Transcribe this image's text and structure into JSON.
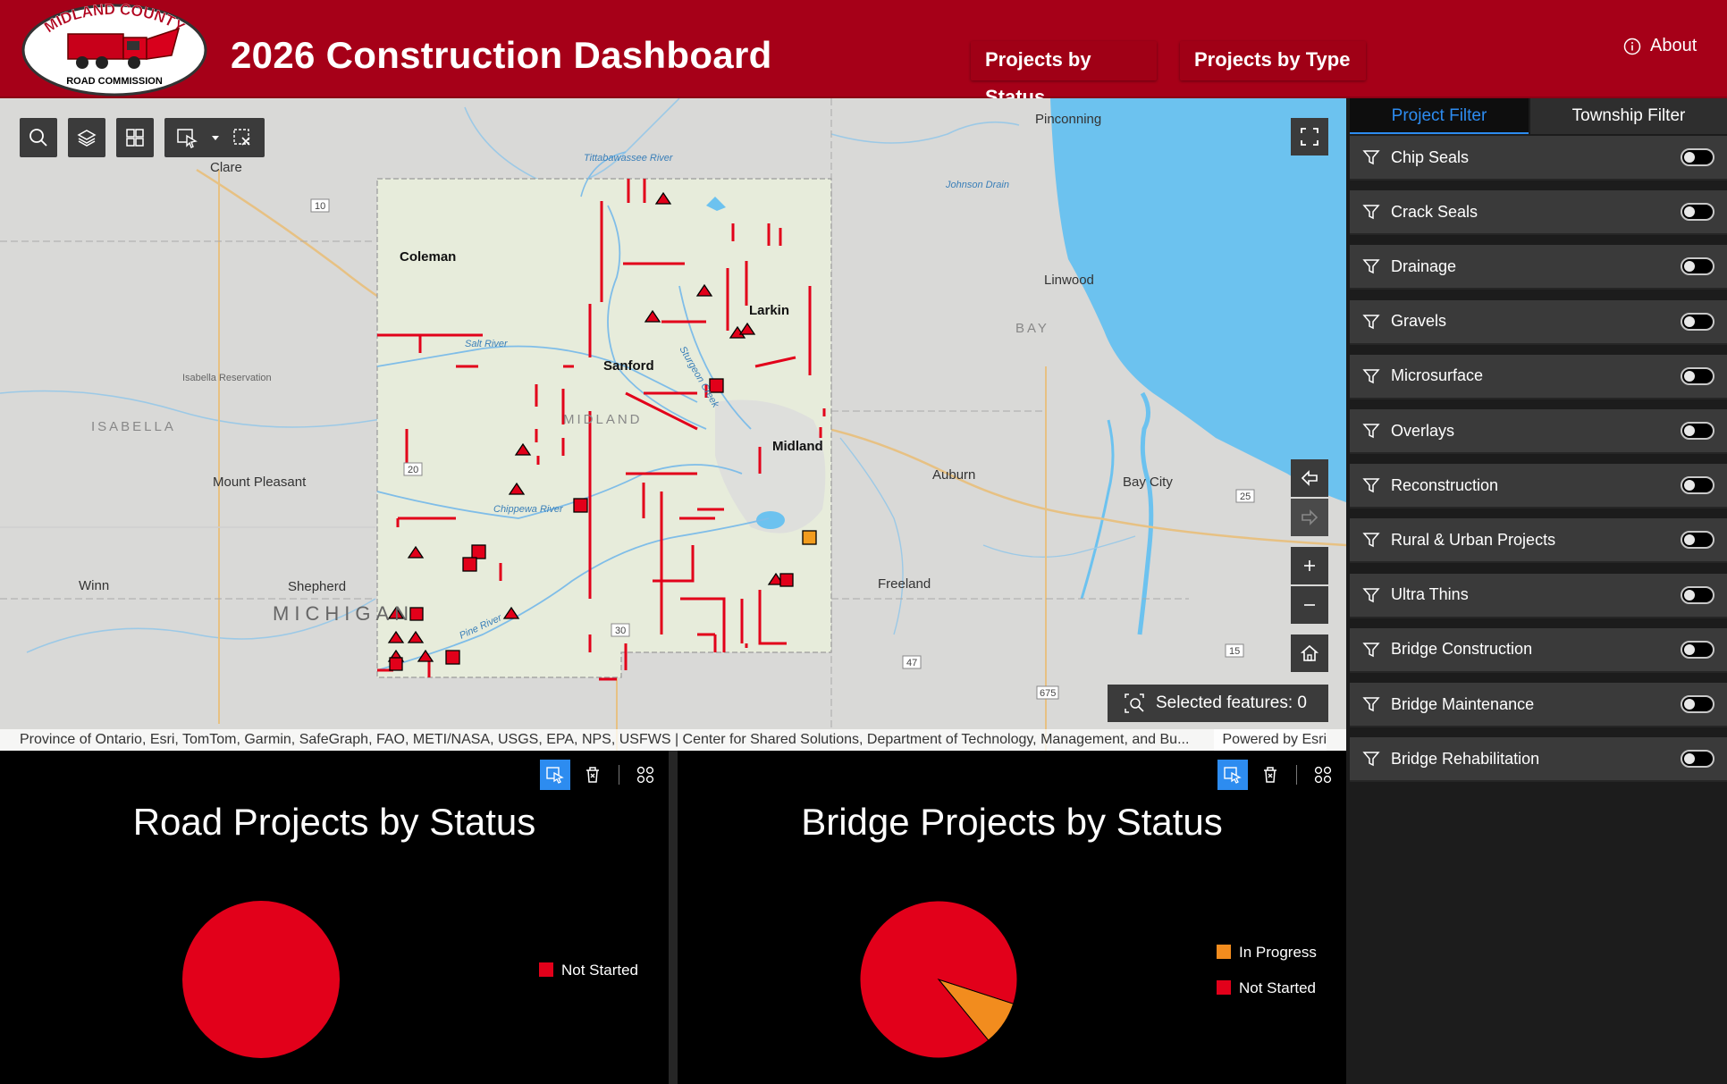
{
  "header": {
    "title": "2026 Construction Dashboard",
    "logo_text_top": "MIDLAND COUNTY",
    "logo_text_bottom": "ROAD COMMISSION",
    "nav": [
      "Projects by Status",
      "Projects by Type"
    ],
    "about": "About",
    "colors": {
      "brand": "#a60018"
    }
  },
  "map": {
    "places": [
      "Pinconning",
      "Clare",
      "Coleman",
      "Larkin",
      "Sanford",
      "Midland",
      "Linwood",
      "Auburn",
      "Bay City",
      "Mount Pleasant",
      "Shepherd",
      "Winn",
      "Freeland",
      "Isabella Reservation"
    ],
    "regions": [
      "MIDLAND",
      "ISABELLA",
      "BAY",
      "MICHIGAN"
    ],
    "rivers": [
      "Tittabawassee River",
      "Johnson Drain",
      "Salt River",
      "Sturgeon Creek",
      "Chippewa River",
      "Pine River"
    ],
    "route_shields": [
      "10",
      "20",
      "30",
      "25",
      "15",
      "47",
      "675"
    ],
    "selected_features": "Selected features: 0",
    "attribution": "Province of Ontario, Esri, TomTom, Garmin, SafeGraph, FAO, METI/NASA, USGS, EPA, NPS, USFWS | Center for Shared Solutions, Department of Technology, Management, and Bu...",
    "powered_by": "Powered by Esri",
    "tools": [
      "search-icon",
      "layers-icon",
      "basemap-gallery-icon",
      "select-icon",
      "clear-selection-icon"
    ],
    "controls": [
      "fullscreen-icon",
      "previous-extent-icon",
      "next-extent-icon",
      "zoom-in-icon",
      "zoom-out-icon",
      "home-icon"
    ]
  },
  "panel": {
    "tabs": [
      "Project Filter",
      "Township Filter"
    ],
    "active_tab": "Project Filter",
    "filters": [
      {
        "label": "Chip Seals",
        "on": false
      },
      {
        "label": "Crack Seals",
        "on": false
      },
      {
        "label": "Drainage",
        "on": false
      },
      {
        "label": "Gravels",
        "on": false
      },
      {
        "label": "Microsurface",
        "on": false
      },
      {
        "label": "Overlays",
        "on": false
      },
      {
        "label": "Reconstruction",
        "on": false
      },
      {
        "label": "Rural & Urban Projects",
        "on": false
      },
      {
        "label": "Ultra Thins",
        "on": false
      },
      {
        "label": "Bridge Construction",
        "on": false
      },
      {
        "label": "Bridge Maintenance",
        "on": false
      },
      {
        "label": "Bridge Rehabilitation",
        "on": false
      }
    ]
  },
  "chart_data": [
    {
      "type": "pie",
      "title": "Road Projects by Status",
      "categories": [
        "Not Started"
      ],
      "values": [
        1
      ],
      "colors": [
        "#e2001a"
      ],
      "legend": "right"
    },
    {
      "type": "pie",
      "title": "Bridge Projects by Status",
      "categories": [
        "In Progress",
        "Not Started"
      ],
      "values": [
        1,
        10
      ],
      "colors": [
        "#f28c1e",
        "#e2001a"
      ],
      "legend": "right"
    }
  ]
}
